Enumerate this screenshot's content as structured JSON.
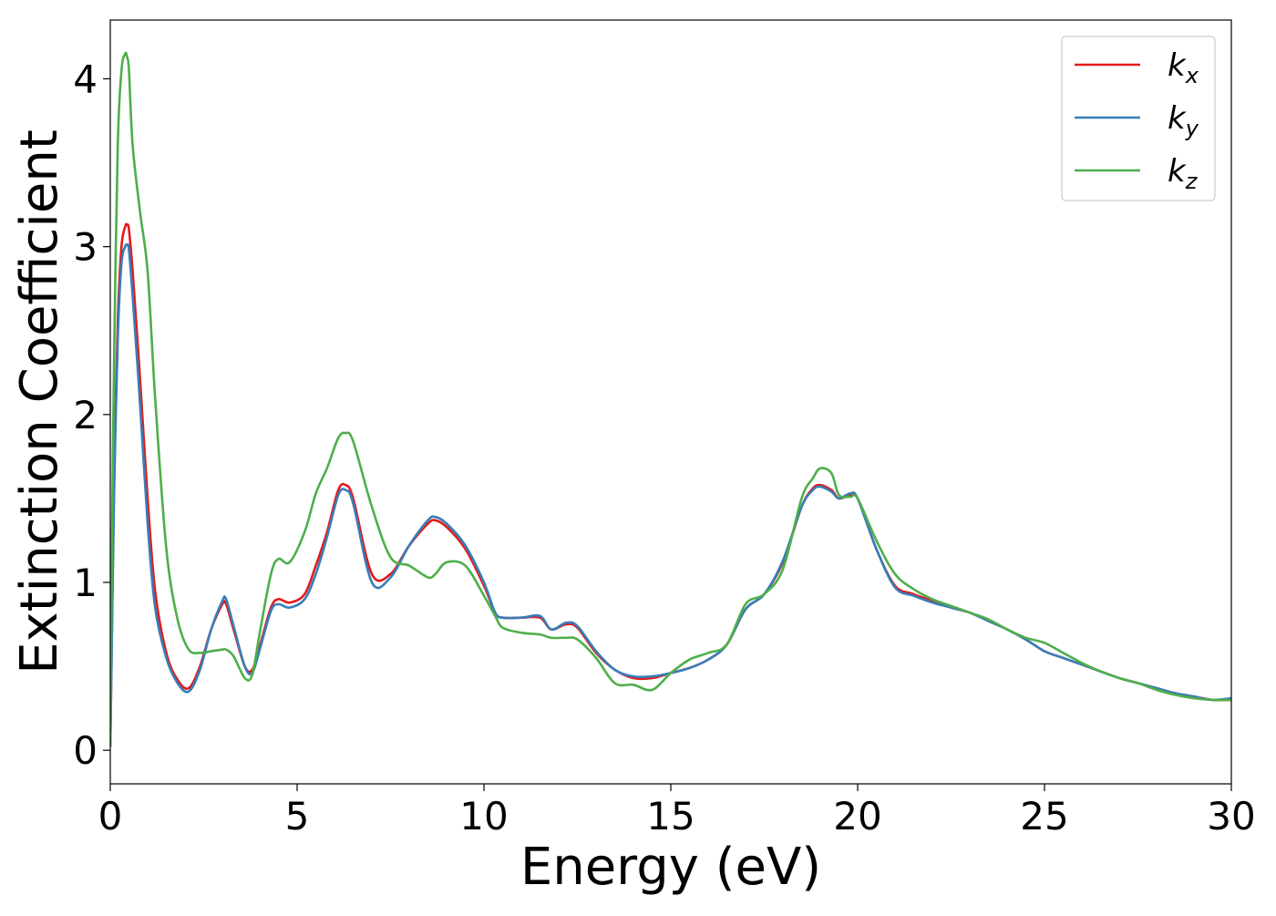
{
  "chart_data": {
    "type": "line",
    "title": "",
    "xlabel": "Energy (eV)",
    "ylabel": "Extinction Coefficient",
    "xlim": [
      0,
      30
    ],
    "ylim": [
      -0.2,
      4.35
    ],
    "xticks": [
      0,
      5,
      10,
      15,
      20,
      25,
      30
    ],
    "yticks": [
      0,
      1,
      2,
      3,
      4
    ],
    "grid": false,
    "legend_position": "top-right",
    "series": [
      {
        "name": "k_x",
        "label_base": "k",
        "label_sub": "x",
        "color": "#e41a1c",
        "x": [
          0,
          0.05,
          0.1,
          0.2,
          0.3,
          0.4,
          0.45,
          0.5,
          0.6,
          0.8,
          1.0,
          1.2,
          1.5,
          1.8,
          2.1,
          2.4,
          2.7,
          3.0,
          3.1,
          3.3,
          3.6,
          3.8,
          4.0,
          4.3,
          4.5,
          4.8,
          5.2,
          5.5,
          5.8,
          6.1,
          6.3,
          6.5,
          7.0,
          7.5,
          8.0,
          8.5,
          8.7,
          9.0,
          9.5,
          10.0,
          10.3,
          10.5,
          11.0,
          11.5,
          11.8,
          12.2,
          12.5,
          13.0,
          13.5,
          14.0,
          14.5,
          15.0,
          15.5,
          16.0,
          16.5,
          17.0,
          17.5,
          18.0,
          18.5,
          18.8,
          19.0,
          19.3,
          19.5,
          19.8,
          20.0,
          20.5,
          21.0,
          21.5,
          22.0,
          22.5,
          23.0,
          23.5,
          24.0,
          24.5,
          25.0,
          25.5,
          26.0,
          26.5,
          27.0,
          27.5,
          28.0,
          28.5,
          29.0,
          29.5,
          30.0
        ],
        "y": [
          0.02,
          0.8,
          1.6,
          2.55,
          3.0,
          3.12,
          3.13,
          3.1,
          2.85,
          2.2,
          1.5,
          0.95,
          0.58,
          0.42,
          0.37,
          0.5,
          0.72,
          0.87,
          0.87,
          0.72,
          0.5,
          0.48,
          0.62,
          0.85,
          0.9,
          0.88,
          0.93,
          1.1,
          1.3,
          1.55,
          1.58,
          1.5,
          1.05,
          1.05,
          1.22,
          1.35,
          1.37,
          1.33,
          1.2,
          0.98,
          0.82,
          0.79,
          0.79,
          0.79,
          0.72,
          0.75,
          0.73,
          0.58,
          0.48,
          0.43,
          0.43,
          0.46,
          0.49,
          0.54,
          0.63,
          0.84,
          0.93,
          1.12,
          1.45,
          1.56,
          1.58,
          1.55,
          1.5,
          1.52,
          1.5,
          1.2,
          0.98,
          0.93,
          0.89,
          0.85,
          0.82,
          0.77,
          0.72,
          0.66,
          0.59,
          0.55,
          0.51,
          0.47,
          0.43,
          0.4,
          0.37,
          0.34,
          0.32,
          0.3,
          0.3
        ]
      },
      {
        "name": "k_y",
        "label_base": "k",
        "label_sub": "y",
        "color": "#377eb8",
        "x": [
          0,
          0.05,
          0.1,
          0.2,
          0.3,
          0.4,
          0.45,
          0.5,
          0.6,
          0.8,
          1.0,
          1.2,
          1.5,
          1.8,
          2.1,
          2.4,
          2.7,
          3.0,
          3.1,
          3.3,
          3.6,
          3.8,
          4.0,
          4.3,
          4.5,
          4.8,
          5.2,
          5.5,
          5.8,
          6.1,
          6.3,
          6.5,
          7.0,
          7.5,
          8.0,
          8.5,
          8.7,
          9.0,
          9.5,
          10.0,
          10.3,
          10.5,
          11.0,
          11.5,
          11.8,
          12.2,
          12.5,
          13.0,
          13.5,
          14.0,
          14.5,
          15.0,
          15.5,
          16.0,
          16.5,
          17.0,
          17.5,
          18.0,
          18.5,
          18.8,
          19.0,
          19.3,
          19.5,
          19.8,
          20.0,
          20.5,
          21.0,
          21.5,
          22.0,
          22.5,
          23.0,
          23.5,
          24.0,
          24.5,
          25.0,
          25.5,
          26.0,
          26.5,
          27.0,
          27.5,
          28.0,
          28.5,
          29.0,
          29.5,
          30.0
        ],
        "y": [
          0.02,
          0.75,
          1.5,
          2.45,
          2.9,
          3.0,
          3.01,
          2.98,
          2.7,
          2.05,
          1.35,
          0.85,
          0.55,
          0.4,
          0.35,
          0.48,
          0.72,
          0.89,
          0.9,
          0.74,
          0.5,
          0.46,
          0.6,
          0.83,
          0.87,
          0.85,
          0.9,
          1.05,
          1.27,
          1.52,
          1.55,
          1.47,
          1.0,
          1.03,
          1.22,
          1.37,
          1.39,
          1.35,
          1.22,
          1.0,
          0.82,
          0.79,
          0.79,
          0.8,
          0.72,
          0.76,
          0.74,
          0.59,
          0.48,
          0.44,
          0.44,
          0.46,
          0.49,
          0.54,
          0.63,
          0.84,
          0.93,
          1.13,
          1.45,
          1.55,
          1.57,
          1.54,
          1.5,
          1.53,
          1.5,
          1.2,
          0.97,
          0.92,
          0.88,
          0.85,
          0.82,
          0.77,
          0.72,
          0.66,
          0.59,
          0.55,
          0.51,
          0.47,
          0.43,
          0.4,
          0.37,
          0.34,
          0.32,
          0.3,
          0.31
        ]
      },
      {
        "name": "k_z",
        "label_base": "k",
        "label_sub": "z",
        "color": "#4daf4a",
        "x": [
          0,
          0.05,
          0.1,
          0.2,
          0.3,
          0.4,
          0.45,
          0.5,
          0.6,
          0.8,
          1.0,
          1.2,
          1.5,
          1.8,
          2.1,
          2.4,
          2.7,
          3.0,
          3.1,
          3.3,
          3.6,
          3.8,
          4.0,
          4.3,
          4.5,
          4.8,
          5.2,
          5.5,
          5.8,
          6.1,
          6.3,
          6.5,
          7.0,
          7.5,
          8.0,
          8.5,
          8.7,
          9.0,
          9.5,
          10.0,
          10.3,
          10.5,
          11.0,
          11.5,
          11.8,
          12.2,
          12.5,
          13.0,
          13.5,
          14.0,
          14.5,
          15.0,
          15.5,
          16.0,
          16.5,
          17.0,
          17.5,
          18.0,
          18.5,
          18.8,
          19.0,
          19.3,
          19.5,
          19.8,
          20.0,
          20.5,
          21.0,
          21.5,
          22.0,
          22.5,
          23.0,
          23.5,
          24.0,
          24.5,
          25.0,
          25.5,
          26.0,
          26.5,
          27.0,
          27.5,
          28.0,
          28.5,
          29.0,
          29.5,
          30.0
        ],
        "y": [
          0.02,
          1.3,
          2.3,
          3.6,
          4.05,
          4.15,
          4.13,
          4.05,
          3.6,
          3.2,
          2.85,
          2.1,
          1.2,
          0.78,
          0.6,
          0.58,
          0.59,
          0.6,
          0.6,
          0.56,
          0.43,
          0.45,
          0.7,
          1.05,
          1.14,
          1.12,
          1.3,
          1.53,
          1.68,
          1.86,
          1.89,
          1.84,
          1.45,
          1.15,
          1.1,
          1.03,
          1.05,
          1.12,
          1.1,
          0.92,
          0.8,
          0.73,
          0.7,
          0.69,
          0.67,
          0.67,
          0.66,
          0.55,
          0.4,
          0.39,
          0.36,
          0.46,
          0.54,
          0.58,
          0.63,
          0.87,
          0.93,
          1.08,
          1.5,
          1.62,
          1.68,
          1.65,
          1.52,
          1.51,
          1.5,
          1.25,
          1.05,
          0.96,
          0.9,
          0.86,
          0.82,
          0.78,
          0.72,
          0.67,
          0.64,
          0.58,
          0.52,
          0.47,
          0.43,
          0.4,
          0.36,
          0.33,
          0.31,
          0.3,
          0.3
        ]
      }
    ]
  }
}
